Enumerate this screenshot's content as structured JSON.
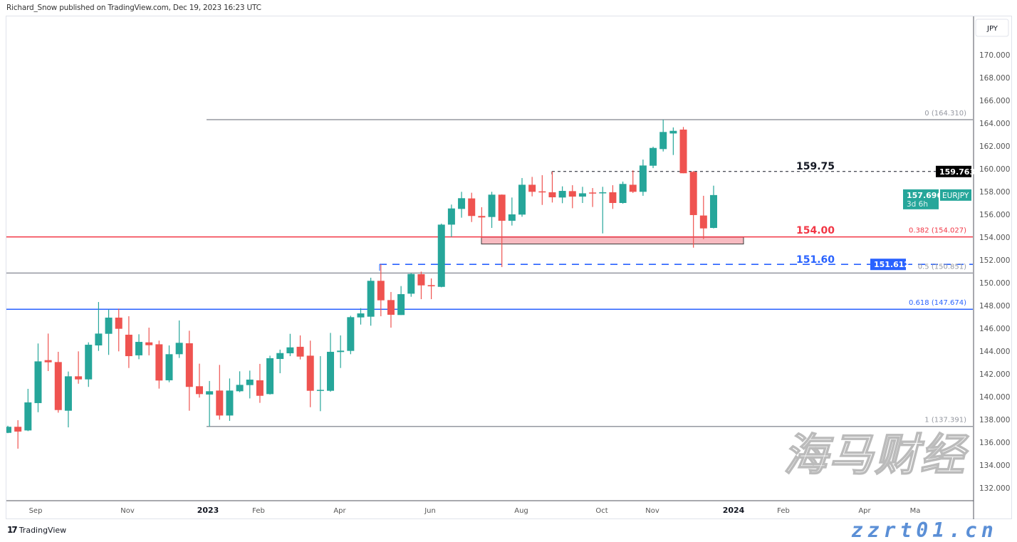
{
  "header": {
    "published": "Richard_Snow published on TradingView.com, Dec 19, 2023 16:23 UTC"
  },
  "footer": {
    "logo": "17",
    "brand": "TradingView"
  },
  "watermark": {
    "cn": "海马财经",
    "url": "zzrt01.cn"
  },
  "price_axis": {
    "currency": "JPY"
  },
  "symbol_badge": {
    "symbol": "EURJPY",
    "last_price": "157.696",
    "countdown": "3d 6h"
  },
  "colors": {
    "up": "#26a69a",
    "down": "#ef5350",
    "fib_gray": "#9598a1",
    "red_level": "#f23645",
    "blue_level": "#2962ff",
    "resist": "#131722"
  },
  "chart_data": {
    "type": "candlestick",
    "title": "",
    "interval": "weekly",
    "ylim": [
      132,
      172
    ],
    "y_ticks": [
      "170.000",
      "168.000",
      "166.000",
      "164.000",
      "162.000",
      "160.000",
      "158.000",
      "156.000",
      "154.000",
      "152.000",
      "150.000",
      "148.000",
      "146.000",
      "144.000",
      "142.000",
      "140.000",
      "138.000",
      "136.000",
      "134.000",
      "132.000"
    ],
    "x_ticks": [
      "Sep",
      "Nov",
      "2023",
      "Feb",
      "Apr",
      "Jun",
      "Aug",
      "Oct",
      "Nov",
      "2024",
      "Feb",
      "Apr",
      "Ma"
    ],
    "ohlc": [
      [
        136.83,
        137.45,
        136.8,
        137.36
      ],
      [
        137.36,
        137.94,
        135.44,
        136.94
      ],
      [
        137.04,
        140.69,
        136.98,
        139.5
      ],
      [
        139.44,
        144.67,
        138.64,
        143.1
      ],
      [
        143.21,
        145.54,
        142.25,
        143.02
      ],
      [
        143.04,
        143.94,
        138.6,
        138.83
      ],
      [
        138.77,
        142.21,
        137.31,
        141.79
      ],
      [
        141.79,
        143.98,
        141.14,
        141.52
      ],
      [
        141.52,
        144.77,
        140.86,
        144.56
      ],
      [
        144.5,
        148.31,
        144.02,
        145.54
      ],
      [
        145.52,
        147.67,
        143.67,
        146.94
      ],
      [
        146.94,
        147.73,
        143.98,
        145.96
      ],
      [
        145.44,
        147.06,
        142.52,
        143.56
      ],
      [
        143.63,
        145.48,
        143.29,
        144.81
      ],
      [
        144.77,
        146.06,
        143.63,
        144.52
      ],
      [
        144.6,
        144.92,
        140.71,
        141.42
      ],
      [
        141.44,
        144.5,
        141.27,
        143.73
      ],
      [
        143.73,
        146.69,
        143.4,
        144.73
      ],
      [
        144.69,
        145.79,
        138.77,
        140.86
      ],
      [
        140.92,
        142.9,
        139.92,
        140.23
      ],
      [
        140.19,
        141.38,
        137.39,
        140.48
      ],
      [
        140.54,
        142.79,
        137.98,
        138.35
      ],
      [
        138.35,
        141.6,
        137.88,
        140.54
      ],
      [
        140.48,
        142.23,
        140.4,
        141.04
      ],
      [
        141.02,
        142.29,
        139.85,
        141.5
      ],
      [
        141.44,
        142.88,
        139.46,
        140.08
      ],
      [
        140.23,
        143.6,
        140.19,
        143.38
      ],
      [
        143.31,
        144.13,
        142.06,
        143.83
      ],
      [
        143.81,
        145.52,
        143.56,
        144.33
      ],
      [
        144.38,
        145.38,
        143.27,
        143.52
      ],
      [
        143.6,
        144.92,
        139.08,
        140.52
      ],
      [
        140.52,
        143.56,
        138.73,
        140.6
      ],
      [
        140.52,
        145.6,
        140.44,
        143.94
      ],
      [
        143.92,
        145.38,
        142.52,
        144.04
      ],
      [
        144.02,
        147.1,
        143.73,
        146.98
      ],
      [
        146.96,
        147.77,
        146.33,
        147.31
      ],
      [
        147.02,
        150.44,
        146.23,
        150.17
      ],
      [
        150.17,
        151.61,
        147.06,
        148.46
      ],
      [
        148.48,
        149.19,
        146.06,
        147.19
      ],
      [
        147.17,
        149.71,
        147.17,
        149.0
      ],
      [
        149.04,
        150.85,
        148.77,
        150.77
      ],
      [
        150.75,
        150.98,
        148.56,
        149.77
      ],
      [
        149.79,
        150.38,
        148.56,
        149.69
      ],
      [
        149.64,
        155.19,
        149.6,
        155.1
      ],
      [
        155.1,
        156.86,
        154.02,
        156.52
      ],
      [
        156.48,
        157.98,
        155.71,
        157.42
      ],
      [
        157.4,
        157.9,
        155.33,
        155.86
      ],
      [
        155.86,
        156.63,
        153.92,
        155.73
      ],
      [
        155.77,
        157.98,
        154.81,
        157.73
      ],
      [
        157.73,
        157.75,
        151.38,
        155.44
      ],
      [
        155.44,
        157.48,
        155.02,
        156.0
      ],
      [
        155.98,
        159.19,
        155.79,
        158.6
      ],
      [
        158.6,
        159.29,
        157.58,
        157.98
      ],
      [
        158.02,
        159.44,
        156.83,
        157.98
      ],
      [
        157.94,
        159.76,
        157.04,
        157.5
      ],
      [
        157.48,
        158.46,
        156.98,
        158.06
      ],
      [
        158.04,
        158.56,
        156.54,
        157.56
      ],
      [
        157.56,
        158.42,
        157.0,
        157.85
      ],
      [
        157.92,
        158.31,
        156.65,
        157.88
      ],
      [
        157.85,
        158.42,
        154.33,
        157.94
      ],
      [
        157.94,
        158.56,
        156.48,
        157.0
      ],
      [
        157.0,
        158.88,
        156.94,
        158.67
      ],
      [
        158.6,
        159.86,
        157.88,
        157.98
      ],
      [
        157.98,
        160.81,
        157.63,
        160.29
      ],
      [
        160.27,
        161.94,
        160.06,
        161.83
      ],
      [
        161.73,
        164.31,
        161.52,
        163.23
      ],
      [
        163.1,
        163.63,
        161.21,
        163.33
      ],
      [
        163.44,
        163.67,
        159.61,
        159.61
      ],
      [
        159.73,
        159.81,
        153.08,
        155.94
      ],
      [
        155.9,
        157.63,
        153.83,
        154.77
      ],
      [
        154.81,
        158.52,
        154.77,
        157.696
      ]
    ],
    "fib_levels": [
      {
        "ratio": "0",
        "price": 164.31,
        "label": "0 (164.310)",
        "color": "#9598a1"
      },
      {
        "ratio": "0.382",
        "price": 154.027,
        "label": "0.382 (154.027)",
        "color": "#f23645"
      },
      {
        "ratio": "0.5",
        "price": 150.851,
        "label": "0.5 (150.851)",
        "color": "#9598a1"
      },
      {
        "ratio": "0.618",
        "price": 147.674,
        "label": "0.618 (147.674)",
        "color": "#2962ff"
      },
      {
        "ratio": "1",
        "price": 137.391,
        "label": "1 (137.391)",
        "color": "#9598a1"
      }
    ],
    "annotations": [
      {
        "text": "159.75",
        "price": 159.763,
        "color": "#131722",
        "style": "dashed",
        "axis_label": "159.763"
      },
      {
        "text": "154.00",
        "price": 154.027,
        "color": "#f23645"
      },
      {
        "text": "151.60",
        "price": 151.612,
        "color": "#2962ff",
        "style": "dashed",
        "axis_label": "151.612"
      }
    ],
    "support_zone": {
      "from": 153.4,
      "to": 154.0,
      "color": "#f8bbc1"
    }
  }
}
